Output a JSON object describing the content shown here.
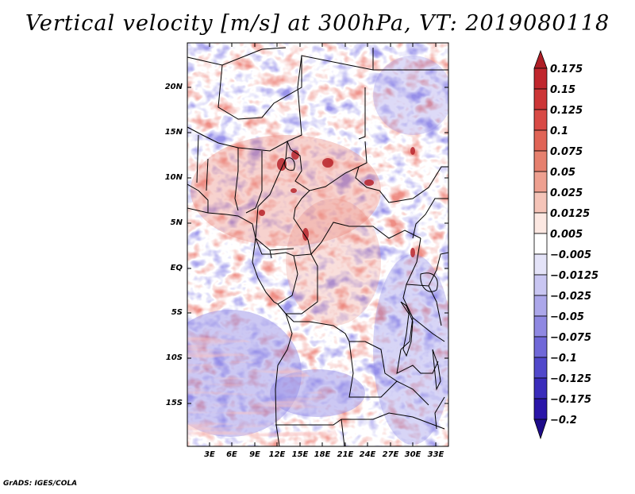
{
  "title": "Vertical velocity [m/s] at 300hPa, VT: 2019080118",
  "credit": "GrADS: IGES/COLA",
  "map": {
    "lat_labels": [
      "20N",
      "15N",
      "10N",
      "5N",
      "EQ",
      "5S",
      "10S",
      "15S"
    ],
    "lon_labels": [
      "3E",
      "6E",
      "9E",
      "12E",
      "15E",
      "18E",
      "21E",
      "24E",
      "27E",
      "30E",
      "33E"
    ]
  },
  "colorbar": {
    "labels": [
      "0.175",
      "0.15",
      "0.125",
      "0.1",
      "0.075",
      "0.05",
      "0.025",
      "0.0125",
      "0.005",
      "−0.005",
      "−0.0125",
      "−0.025",
      "−0.05",
      "−0.075",
      "−0.1",
      "−0.125",
      "−0.175",
      "−0.2"
    ],
    "colors": [
      "#ae1e26",
      "#c0262d",
      "#cc3536",
      "#d84a45",
      "#e06456",
      "#e6806e",
      "#eea090",
      "#f5c4b8",
      "#fce8e2",
      "#ffffff",
      "#e4e3f8",
      "#c9c6f2",
      "#aca7ea",
      "#8f88e2",
      "#7068d8",
      "#5148cb",
      "#3a2cbb",
      "#2a15a8",
      "#1e0c8a"
    ]
  },
  "colors": {
    "strong_up": "#c0262d",
    "up": "#ef9a90",
    "neutral": "#ffffff",
    "down": "#9e9aec",
    "strong_down": "#4a3cc4"
  }
}
